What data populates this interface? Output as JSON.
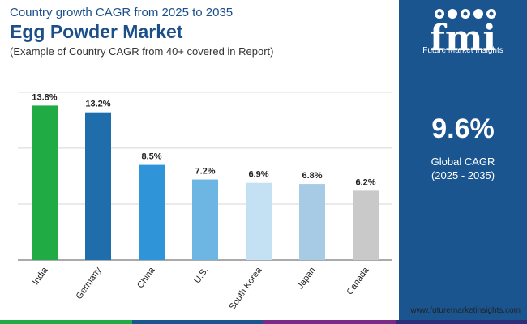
{
  "header": {
    "subtitle": "Country growth CAGR from 2025 to 2035",
    "title": "Egg Powder Market",
    "note": "(Example of Country CAGR from 40+ covered in Report)"
  },
  "chart_data": {
    "type": "bar",
    "title": "Egg Powder Market",
    "categories": [
      "India",
      "Germany",
      "China",
      "U.S.",
      "South Korea",
      "Japan",
      "Canada"
    ],
    "values": [
      13.8,
      13.2,
      8.5,
      7.2,
      6.9,
      6.8,
      6.2
    ],
    "value_labels": [
      "13.8%",
      "13.2%",
      "8.5%",
      "7.2%",
      "6.9%",
      "6.8%",
      "6.2%"
    ],
    "bar_colors": [
      "#21ab45",
      "#1f6eab",
      "#2f94d8",
      "#6db5e2",
      "#c3e1f3",
      "#a7cbe4",
      "#c9c9c9"
    ],
    "ylim": [
      0,
      16
    ],
    "gridlines": [
      0,
      5,
      10,
      15
    ],
    "xlabel": "",
    "ylabel": ""
  },
  "side_panel": {
    "logo_name": "fmi",
    "logo_text": "Future Market Insights",
    "cagr_value": "9.6%",
    "cagr_label": "Global CAGR",
    "cagr_period": "(2025 - 2035)",
    "color": "#1b5590"
  },
  "footer": {
    "website": "www.futuremarketinsights.com",
    "strip_colors": [
      "#21ab45",
      "#1b5590",
      "#7a2b86",
      "#2d2d7a"
    ]
  }
}
